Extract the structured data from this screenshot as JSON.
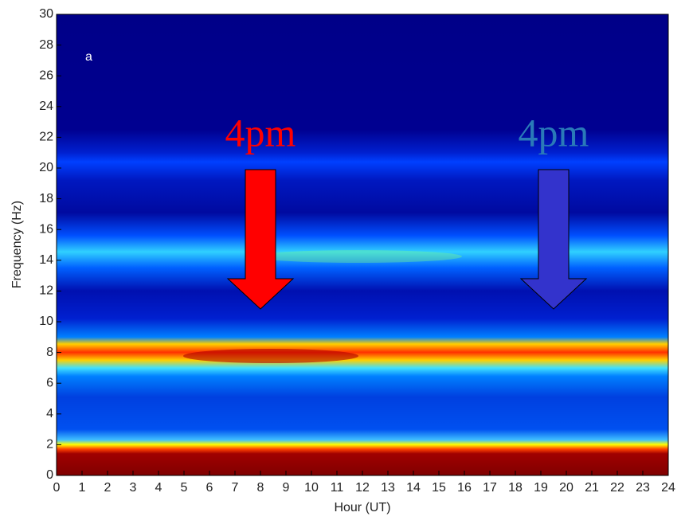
{
  "chart_data": {
    "type": "heatmap",
    "xlabel": "Hour (UT)",
    "ylabel": "Frequency (Hz)",
    "xlim": [
      0,
      24
    ],
    "xticks": [
      0,
      1,
      2,
      3,
      4,
      5,
      6,
      7,
      8,
      9,
      10,
      11,
      12,
      13,
      14,
      15,
      16,
      17,
      18,
      19,
      20,
      21,
      22,
      23,
      24
    ],
    "ylim": [
      0,
      30
    ],
    "yticks": [
      0,
      2,
      4,
      6,
      8,
      10,
      12,
      14,
      16,
      18,
      20,
      22,
      24,
      26,
      28,
      30
    ],
    "panel_label": "a",
    "annotations": [
      {
        "text": "4pm",
        "x": 8,
        "color": "#ff0000"
      },
      {
        "text": "4pm",
        "x": 19.5,
        "color": "#2a7ab8"
      }
    ],
    "arrow_colors": [
      "#ff0000",
      "#3333cc"
    ]
  }
}
